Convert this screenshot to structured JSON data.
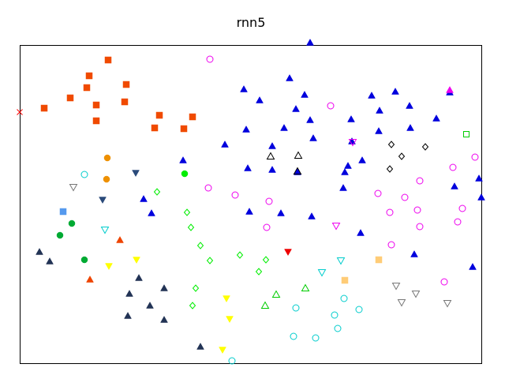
{
  "chart_data": {
    "type": "scatter",
    "title": "rnn5",
    "xlabel": "",
    "ylabel": "",
    "grid": false,
    "axes_visible": false,
    "xlim": [
      0,
      585
    ],
    "ylim": [
      0,
      403
    ],
    "series": [
      {
        "marker": "square",
        "filled": true,
        "color": "#f04a00",
        "points": [
          [
            112,
            384
          ],
          [
            88,
            364
          ],
          [
            85,
            349
          ],
          [
            135,
            353
          ],
          [
            64,
            336
          ],
          [
            97,
            327
          ],
          [
            133,
            331
          ],
          [
            31,
            323
          ],
          [
            97,
            307
          ],
          [
            177,
            314
          ],
          [
            219,
            312
          ],
          [
            171,
            298
          ],
          [
            208,
            297
          ]
        ]
      },
      {
        "marker": "x",
        "filled": true,
        "color": "#ff0000",
        "points": [
          [
            0,
            318
          ]
        ]
      },
      {
        "marker": "triangle-up",
        "filled": true,
        "color": "#0000dd",
        "points": [
          [
            368,
            406
          ],
          [
            342,
            361
          ],
          [
            284,
            347
          ],
          [
            304,
            333
          ],
          [
            361,
            340
          ],
          [
            350,
            322
          ],
          [
            368,
            308
          ],
          [
            335,
            298
          ],
          [
            287,
            296
          ],
          [
            260,
            277
          ],
          [
            372,
            285
          ],
          [
            207,
            257
          ],
          [
            320,
            275
          ],
          [
            289,
            247
          ],
          [
            320,
            245
          ],
          [
            352,
            242
          ],
          [
            416,
            250
          ],
          [
            420,
            309
          ],
          [
            446,
            339
          ],
          [
            456,
            320
          ],
          [
            476,
            344
          ],
          [
            494,
            326
          ],
          [
            421,
            281
          ],
          [
            455,
            294
          ],
          [
            434,
            257
          ],
          [
            495,
            298
          ],
          [
            528,
            310
          ],
          [
            545,
            343
          ],
          [
            412,
            242
          ],
          [
            410,
            222
          ],
          [
            432,
            165
          ],
          [
            500,
            138
          ],
          [
            582,
            234
          ],
          [
            585,
            210
          ],
          [
            551,
            224
          ],
          [
            574,
            122
          ],
          [
            157,
            208
          ],
          [
            167,
            190
          ],
          [
            291,
            192
          ],
          [
            331,
            190
          ],
          [
            370,
            186
          ]
        ]
      },
      {
        "marker": "triangle-up",
        "filled": false,
        "color": "#000000",
        "points": [
          [
            318,
            262
          ],
          [
            353,
            263
          ],
          [
            352,
            243
          ]
        ]
      },
      {
        "marker": "diamond",
        "filled": false,
        "color": "#000000",
        "points": [
          [
            471,
            277
          ],
          [
            484,
            262
          ],
          [
            514,
            274
          ],
          [
            469,
            246
          ]
        ]
      },
      {
        "marker": "triangle-up",
        "filled": true,
        "color": "#ee00ee",
        "points": [
          [
            545,
            346
          ]
        ]
      },
      {
        "marker": "circle",
        "filled": false,
        "color": "#ee00ee",
        "points": [
          [
            241,
            385
          ],
          [
            394,
            326
          ],
          [
            577,
            261
          ],
          [
            549,
            248
          ],
          [
            507,
            231
          ],
          [
            454,
            215
          ],
          [
            488,
            210
          ],
          [
            239,
            222
          ],
          [
            273,
            213
          ],
          [
            316,
            205
          ],
          [
            469,
            191
          ],
          [
            504,
            194
          ],
          [
            561,
            196
          ],
          [
            555,
            179
          ],
          [
            507,
            173
          ],
          [
            313,
            172
          ],
          [
            471,
            150
          ],
          [
            538,
            103
          ]
        ]
      },
      {
        "marker": "triangle-down",
        "filled": false,
        "color": "#ee00ee",
        "points": [
          [
            422,
            280
          ],
          [
            401,
            174
          ]
        ]
      },
      {
        "marker": "square",
        "filled": false,
        "color": "#00cc00",
        "points": [
          [
            566,
            290
          ]
        ]
      },
      {
        "marker": "circle",
        "filled": true,
        "color": "#ee9000",
        "points": [
          [
            111,
            260
          ],
          [
            110,
            233
          ]
        ]
      },
      {
        "marker": "triangle-down",
        "filled": true,
        "color": "#2a4a7a",
        "points": [
          [
            147,
            241
          ],
          [
            105,
            207
          ]
        ]
      },
      {
        "marker": "circle",
        "filled": true,
        "color": "#00ee00",
        "points": [
          [
            209,
            240
          ]
        ]
      },
      {
        "marker": "circle",
        "filled": false,
        "color": "#00cccc",
        "points": [
          [
            82,
            239
          ],
          [
            411,
            82
          ],
          [
            350,
            70
          ],
          [
            430,
            68
          ],
          [
            399,
            61
          ],
          [
            403,
            44
          ],
          [
            347,
            34
          ],
          [
            375,
            32
          ],
          [
            269,
            3
          ]
        ]
      },
      {
        "marker": "triangle-down",
        "filled": false,
        "color": "#777777",
        "points": [
          [
            68,
            223
          ],
          [
            477,
            98
          ],
          [
            502,
            88
          ],
          [
            484,
            77
          ],
          [
            542,
            76
          ]
        ]
      },
      {
        "marker": "diamond",
        "filled": false,
        "color": "#00ee00",
        "points": [
          [
            174,
            217
          ],
          [
            212,
            191
          ],
          [
            217,
            172
          ],
          [
            229,
            149
          ],
          [
            241,
            130
          ],
          [
            279,
            137
          ],
          [
            312,
            131
          ],
          [
            303,
            116
          ],
          [
            223,
            95
          ],
          [
            219,
            73
          ]
        ]
      },
      {
        "marker": "square",
        "filled": true,
        "color": "#5599ee",
        "points": [
          [
            55,
            192
          ]
        ]
      },
      {
        "marker": "circle",
        "filled": true,
        "color": "#00aa33",
        "points": [
          [
            66,
            177
          ],
          [
            51,
            162
          ],
          [
            82,
            131
          ]
        ]
      },
      {
        "marker": "triangle-down",
        "filled": false,
        "color": "#00cccc",
        "points": [
          [
            108,
            169
          ],
          [
            407,
            130
          ],
          [
            383,
            115
          ]
        ]
      },
      {
        "marker": "triangle-up",
        "filled": true,
        "color": "#ee4400",
        "points": [
          [
            127,
            156
          ],
          [
            89,
            106
          ]
        ]
      },
      {
        "marker": "triangle-up",
        "filled": true,
        "color": "#223355",
        "points": [
          [
            25,
            141
          ],
          [
            38,
            129
          ],
          [
            151,
            108
          ],
          [
            139,
            88
          ],
          [
            183,
            95
          ],
          [
            165,
            73
          ],
          [
            137,
            60
          ],
          [
            183,
            55
          ],
          [
            229,
            21
          ]
        ]
      },
      {
        "marker": "triangle-down",
        "filled": true,
        "color": "#ffff00",
        "points": [
          [
            148,
            131
          ],
          [
            113,
            123
          ],
          [
            262,
            82
          ],
          [
            266,
            56
          ],
          [
            257,
            17
          ]
        ]
      },
      {
        "marker": "triangle-down",
        "filled": true,
        "color": "#ee0000",
        "points": [
          [
            340,
            141
          ]
        ]
      },
      {
        "marker": "square",
        "filled": true,
        "color": "#ffcc77",
        "points": [
          [
            455,
            131
          ],
          [
            412,
            105
          ]
        ]
      },
      {
        "marker": "triangle-up",
        "filled": false,
        "color": "#00cc00",
        "points": [
          [
            362,
            95
          ],
          [
            325,
            87
          ],
          [
            311,
            73
          ]
        ]
      }
    ]
  }
}
